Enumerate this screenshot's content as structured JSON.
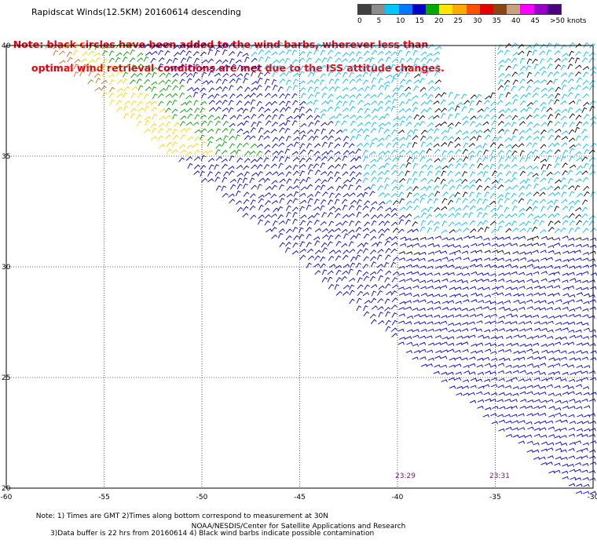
{
  "title": "Rapidscat Winds(12.5KM) 20160614 descending",
  "note": {
    "line1": "Note: black circles have been added to the wind barbs, wherever less than",
    "line2": "optimal wind retrieval conditions are met due to the ISS attitude changes."
  },
  "legend": {
    "labels": [
      "0",
      "5",
      "10",
      "15",
      "20",
      "25",
      "30",
      "35",
      "40",
      "45",
      ">50 knots"
    ],
    "colors": [
      "#404040",
      "#8c8c8c",
      "#00c8ff",
      "#0078ff",
      "#0000c8",
      "#00aa00",
      "#ffe600",
      "#ffaa00",
      "#ff5000",
      "#e60000",
      "#8b4513",
      "#c8a082",
      "#ff00ff",
      "#9600c8",
      "#4b0082"
    ]
  },
  "axes": {
    "x_ticks": [
      "-60",
      "-55",
      "-50",
      "-45",
      "-40",
      "-35",
      "-30"
    ],
    "y_ticks": [
      "40",
      "35",
      "30",
      "25",
      "20"
    ]
  },
  "times": [
    "23:29",
    "23:31"
  ],
  "footer": {
    "line1": "Note: 1) Times are GMT 2)Times along bottom correspond to measurement at 30N",
    "line2": "3)Data buffer is 22 hrs from 20160614 4) Black wind barbs indicate possible contamination",
    "credit": "NOAA/NESDIS/Center for Satellite Applications and Research"
  },
  "map_data": {
    "lon_range": [
      -60,
      -30
    ],
    "lat_range": [
      20,
      40
    ],
    "grid": true,
    "swath": "diagonal from upper-left to lower-right",
    "wind_colors": {
      "light": "#00bfff",
      "medium": "#0000cd",
      "strong": "#00a000",
      "stronger": "#ffd700",
      "strongest": "#d2691e",
      "contaminated": "#000000"
    }
  }
}
